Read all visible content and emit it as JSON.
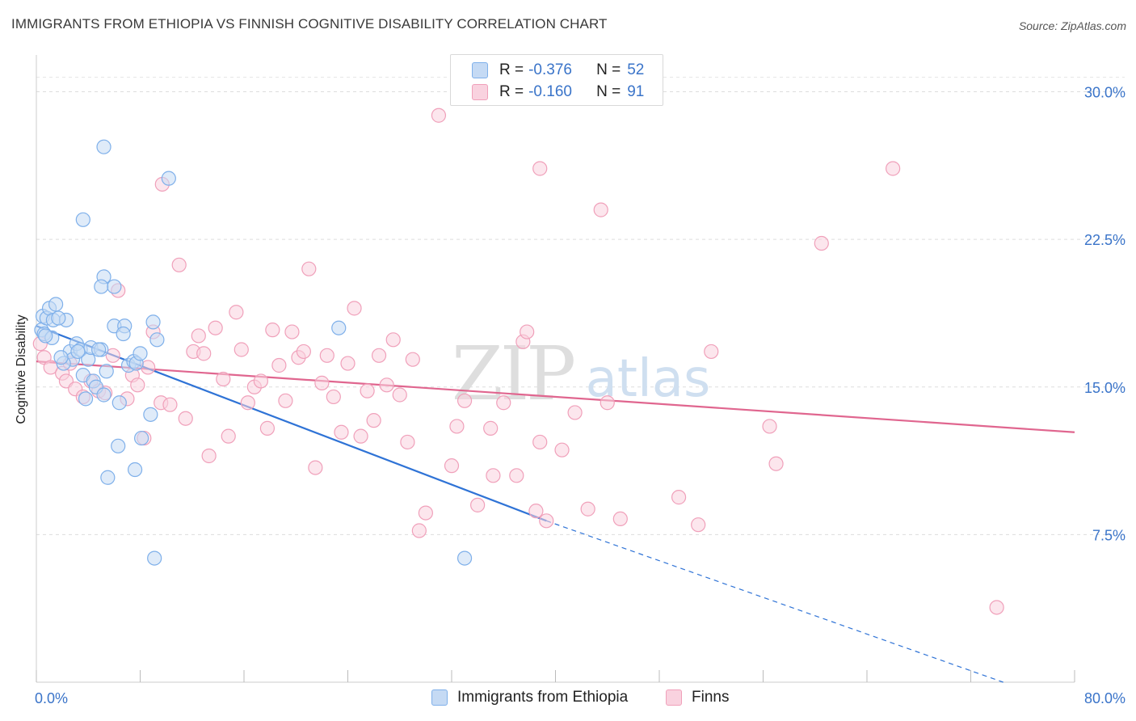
{
  "title": "IMMIGRANTS FROM ETHIOPIA VS FINNISH COGNITIVE DISABILITY CORRELATION CHART",
  "source": "Source: ZipAtlas.com",
  "watermark": {
    "zip": "ZIP",
    "atlas": "atlas"
  },
  "legend": {
    "rows": [
      {
        "r_label": "R =",
        "r_value": "-0.376",
        "n_label": "N =",
        "n_value": "52"
      },
      {
        "r_label": "R =",
        "r_value": "-0.160",
        "n_label": "N =",
        "n_value": "91"
      }
    ]
  },
  "bottom_legend": {
    "items": [
      {
        "label": "Immigrants from Ethiopia"
      },
      {
        "label": "Finns"
      }
    ]
  },
  "chart_data": {
    "type": "scatter",
    "title": "IMMIGRANTS FROM ETHIOPIA VS FINNISH COGNITIVE DISABILITY CORRELATION CHART",
    "xlabel": "",
    "ylabel": "Cognitive Disability",
    "xlim": [
      0,
      80
    ],
    "ylim": [
      0,
      31.5
    ],
    "x_tick_labels": [
      "0.0%",
      "80.0%"
    ],
    "y_ticks": [
      7.5,
      15.0,
      22.5,
      30.0
    ],
    "y_tick_labels": [
      "7.5%",
      "15.0%",
      "22.5%",
      "30.0%"
    ],
    "grid": true,
    "legend_position": "top-center",
    "series": [
      {
        "name": "Immigrants from Ethiopia",
        "color": "#7fb0ea",
        "fill": "#c5daf4",
        "r": -0.376,
        "n": 52,
        "trend": {
          "x0": 0,
          "y0": 18.1,
          "x1": 39.3,
          "y1": 8.2,
          "dash_to_x": 74.5,
          "dash_to_y": 0.0
        },
        "points": [
          [
            0.4,
            17.9
          ],
          [
            0.6,
            17.7
          ],
          [
            0.5,
            18.6
          ],
          [
            0.8,
            18.5
          ],
          [
            1.0,
            19.0
          ],
          [
            1.3,
            18.4
          ],
          [
            1.5,
            19.2
          ],
          [
            1.2,
            17.5
          ],
          [
            2.3,
            18.4
          ],
          [
            2.6,
            16.8
          ],
          [
            3.1,
            17.2
          ],
          [
            2.8,
            16.4
          ],
          [
            3.4,
            16.9
          ],
          [
            3.6,
            15.6
          ],
          [
            4.0,
            16.4
          ],
          [
            4.2,
            17.0
          ],
          [
            4.4,
            15.3
          ],
          [
            4.6,
            15.0
          ],
          [
            5.0,
            16.9
          ],
          [
            5.4,
            15.8
          ],
          [
            5.2,
            14.6
          ],
          [
            6.0,
            18.1
          ],
          [
            6.4,
            14.2
          ],
          [
            6.8,
            18.1
          ],
          [
            7.1,
            16.1
          ],
          [
            7.5,
            16.3
          ],
          [
            7.7,
            16.2
          ],
          [
            8.0,
            16.7
          ],
          [
            8.1,
            12.4
          ],
          [
            8.8,
            13.6
          ],
          [
            9.0,
            18.3
          ],
          [
            9.3,
            17.4
          ],
          [
            3.8,
            14.4
          ],
          [
            6.3,
            12.0
          ],
          [
            5.5,
            10.4
          ],
          [
            7.6,
            10.8
          ],
          [
            5.2,
            20.6
          ],
          [
            5.0,
            20.1
          ],
          [
            6.0,
            20.1
          ],
          [
            3.6,
            23.5
          ],
          [
            5.2,
            27.2
          ],
          [
            10.2,
            25.6
          ],
          [
            9.1,
            6.3
          ],
          [
            33.0,
            6.3
          ],
          [
            23.3,
            18.0
          ],
          [
            6.7,
            17.7
          ],
          [
            4.8,
            16.9
          ],
          [
            2.1,
            16.2
          ],
          [
            1.9,
            16.5
          ],
          [
            3.2,
            16.8
          ],
          [
            0.7,
            17.6
          ],
          [
            1.7,
            18.5
          ]
        ]
      },
      {
        "name": "Finns",
        "color": "#f0a0ba",
        "fill": "#f9d2df",
        "r": -0.16,
        "n": 91,
        "trend": {
          "x0": 0,
          "y0": 16.3,
          "x1": 80,
          "y1": 12.7
        },
        "points": [
          [
            0.3,
            17.2
          ],
          [
            0.6,
            16.5
          ],
          [
            1.1,
            16.0
          ],
          [
            2.0,
            15.7
          ],
          [
            2.3,
            15.3
          ],
          [
            2.6,
            16.2
          ],
          [
            3.0,
            14.9
          ],
          [
            3.6,
            14.5
          ],
          [
            4.2,
            15.3
          ],
          [
            4.8,
            14.8
          ],
          [
            5.3,
            14.7
          ],
          [
            5.9,
            16.6
          ],
          [
            6.3,
            19.9
          ],
          [
            7.0,
            14.4
          ],
          [
            7.4,
            15.6
          ],
          [
            7.8,
            15.1
          ],
          [
            8.3,
            12.4
          ],
          [
            8.6,
            16.0
          ],
          [
            9.0,
            17.8
          ],
          [
            9.6,
            14.2
          ],
          [
            10.3,
            14.1
          ],
          [
            11.0,
            21.2
          ],
          [
            11.5,
            13.4
          ],
          [
            12.1,
            16.8
          ],
          [
            12.5,
            17.6
          ],
          [
            12.9,
            16.7
          ],
          [
            13.3,
            11.5
          ],
          [
            13.8,
            18.0
          ],
          [
            14.4,
            15.4
          ],
          [
            14.8,
            12.5
          ],
          [
            15.4,
            18.8
          ],
          [
            15.8,
            16.9
          ],
          [
            16.3,
            14.2
          ],
          [
            16.8,
            15.0
          ],
          [
            17.3,
            15.3
          ],
          [
            17.8,
            12.9
          ],
          [
            18.2,
            17.9
          ],
          [
            18.7,
            16.1
          ],
          [
            19.2,
            14.3
          ],
          [
            19.7,
            17.8
          ],
          [
            20.2,
            16.5
          ],
          [
            20.6,
            16.8
          ],
          [
            21.0,
            21.0
          ],
          [
            21.5,
            10.9
          ],
          [
            22.0,
            15.2
          ],
          [
            22.4,
            16.6
          ],
          [
            22.9,
            14.5
          ],
          [
            23.5,
            12.7
          ],
          [
            24.0,
            16.2
          ],
          [
            24.5,
            19.0
          ],
          [
            25.0,
            12.5
          ],
          [
            25.5,
            14.8
          ],
          [
            26.0,
            13.3
          ],
          [
            26.4,
            16.6
          ],
          [
            27.0,
            15.1
          ],
          [
            27.5,
            17.4
          ],
          [
            28.0,
            14.6
          ],
          [
            28.6,
            12.2
          ],
          [
            29.0,
            16.4
          ],
          [
            29.5,
            7.7
          ],
          [
            30.0,
            8.6
          ],
          [
            31.0,
            28.8
          ],
          [
            32.0,
            11.0
          ],
          [
            32.4,
            13.0
          ],
          [
            33.0,
            14.3
          ],
          [
            34.0,
            9.0
          ],
          [
            35.0,
            12.9
          ],
          [
            35.2,
            10.5
          ],
          [
            36.0,
            14.2
          ],
          [
            37.0,
            10.5
          ],
          [
            37.5,
            17.3
          ],
          [
            37.8,
            17.8
          ],
          [
            38.5,
            8.7
          ],
          [
            38.8,
            12.2
          ],
          [
            39.3,
            8.2
          ],
          [
            40.5,
            11.8
          ],
          [
            41.5,
            13.7
          ],
          [
            42.5,
            8.8
          ],
          [
            43.5,
            24.0
          ],
          [
            44.0,
            14.2
          ],
          [
            45.0,
            8.3
          ],
          [
            49.5,
            9.4
          ],
          [
            51.0,
            8.0
          ],
          [
            52.0,
            16.8
          ],
          [
            56.5,
            13.0
          ],
          [
            57.0,
            11.1
          ],
          [
            60.5,
            22.3
          ],
          [
            66.0,
            26.1
          ],
          [
            74.0,
            3.8
          ],
          [
            38.8,
            26.1
          ],
          [
            9.7,
            25.3
          ]
        ]
      }
    ]
  }
}
